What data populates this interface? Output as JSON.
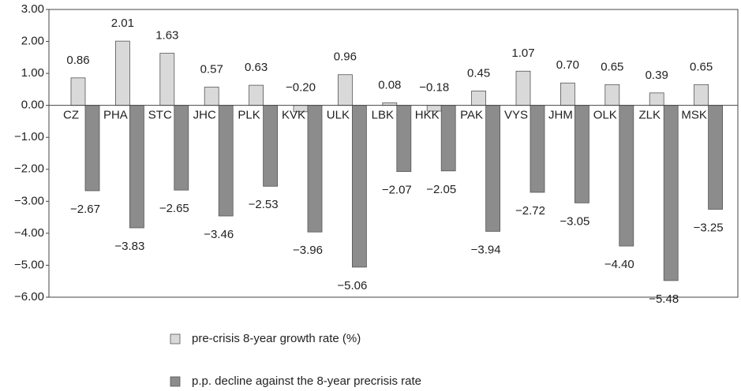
{
  "chart_data": {
    "type": "bar",
    "categories": [
      "CZ",
      "PHA",
      "STC",
      "JHC",
      "PLK",
      "KVK",
      "ULK",
      "LBK",
      "HKK",
      "PAK",
      "VYS",
      "JHM",
      "OLK",
      "ZLK",
      "MSK"
    ],
    "series": [
      {
        "name": "pre-crisis 8-year growth rate (%)",
        "color": "#d9d9d9",
        "values": [
          0.86,
          2.01,
          1.63,
          0.57,
          0.63,
          -0.2,
          0.96,
          0.08,
          -0.18,
          0.45,
          1.07,
          0.7,
          0.65,
          0.39,
          0.65
        ],
        "value_labels": [
          "0.86",
          "2.01",
          "1.63",
          "0.57",
          "0.63",
          "−0.20",
          "0.96",
          "0.08",
          "−0.18",
          "0.45",
          "1.07",
          "0.70",
          "0.65",
          "0.39",
          "0.65"
        ]
      },
      {
        "name": "p.p. decline against the 8-year precrisis rate",
        "color": "#8c8c8c",
        "values": [
          -2.67,
          -3.83,
          -2.65,
          -3.46,
          -2.53,
          -3.96,
          -5.06,
          -2.07,
          -2.05,
          -3.94,
          -2.72,
          -3.05,
          -4.4,
          -5.48,
          -3.25
        ],
        "value_labels": [
          "−2.67",
          "−3.83",
          "−2.65",
          "−3.46",
          "−2.53",
          "−3.96",
          "−5.06",
          "−2.07",
          "−2.05",
          "−3.94",
          "−2.72",
          "−3.05",
          "−4.40",
          "−5.48",
          "−3.25"
        ]
      }
    ],
    "ylim": [
      -6,
      3
    ],
    "yticks": [
      {
        "value": -6,
        "label": "−6.00"
      },
      {
        "value": -5,
        "label": "−5.00"
      },
      {
        "value": -4,
        "label": "−4.00"
      },
      {
        "value": -3,
        "label": "−3.00"
      },
      {
        "value": -2,
        "label": "−2.00"
      },
      {
        "value": -1,
        "label": "−1.00"
      },
      {
        "value": 0,
        "label": "0.00"
      },
      {
        "value": 1,
        "label": "1.00"
      },
      {
        "value": 2,
        "label": "2.00"
      },
      {
        "value": 3,
        "label": "3.00"
      }
    ],
    "grid": false,
    "legend": "bottom"
  }
}
